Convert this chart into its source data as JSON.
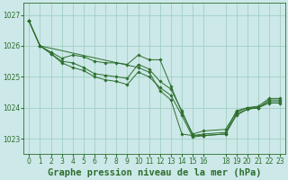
{
  "background_color": "#cce8e8",
  "grid_color": "#99ccbb",
  "line_color": "#2d6e2d",
  "marker_color": "#2d6e2d",
  "title": "Graphe pression niveau de la mer (hPa)",
  "xlim": [
    -0.5,
    23.5
  ],
  "ylim": [
    1022.5,
    1027.4
  ],
  "yticks": [
    1023,
    1024,
    1025,
    1026,
    1027
  ],
  "xticks": [
    0,
    1,
    2,
    3,
    4,
    5,
    6,
    7,
    8,
    9,
    10,
    11,
    12,
    13,
    14,
    15,
    16,
    18,
    19,
    20,
    21,
    22,
    23
  ],
  "series": [
    {
      "x": [
        0,
        1,
        2,
        3,
        4,
        5,
        6,
        7,
        8,
        9,
        10,
        11,
        12,
        13,
        14,
        15,
        16,
        18,
        19,
        20,
        21,
        22,
        23
      ],
      "y": [
        1026.8,
        1026.0,
        1025.8,
        1025.6,
        1025.7,
        1025.65,
        1025.5,
        1025.45,
        1025.45,
        1025.4,
        1025.7,
        1025.55,
        1025.55,
        1024.7,
        1023.85,
        1023.15,
        1023.25,
        1023.3,
        1023.85,
        1024.0,
        1024.05,
        1024.3,
        1024.3
      ]
    },
    {
      "x": [
        0,
        1,
        2,
        3,
        4,
        5,
        6,
        7,
        8,
        9,
        10,
        11,
        12,
        13,
        14,
        15,
        16,
        18,
        19,
        20,
        21,
        22,
        23
      ],
      "y": [
        1026.8,
        1026.0,
        1025.75,
        1025.5,
        1025.45,
        1025.3,
        1025.1,
        1025.05,
        1025.0,
        1024.95,
        1025.4,
        1025.25,
        1024.85,
        1024.6,
        1023.9,
        1023.1,
        1023.15,
        1023.2,
        1023.9,
        1024.0,
        1024.0,
        1024.25,
        1024.25
      ]
    },
    {
      "x": [
        0,
        1,
        2,
        3,
        4,
        5,
        6,
        7,
        8,
        9,
        10,
        11,
        12,
        13,
        14,
        15,
        16,
        18,
        19,
        20,
        21,
        22,
        23
      ],
      "y": [
        1026.8,
        1026.0,
        1025.75,
        1025.45,
        1025.3,
        1025.2,
        1025.0,
        1024.9,
        1024.85,
        1024.75,
        1025.15,
        1025.0,
        1024.65,
        1024.4,
        1023.75,
        1023.05,
        1023.1,
        1023.15,
        1023.8,
        1023.95,
        1024.0,
        1024.2,
        1024.2
      ]
    },
    {
      "x": [
        0,
        1,
        10,
        11,
        12,
        13,
        14,
        15,
        16,
        18,
        19,
        20,
        21,
        22,
        23
      ],
      "y": [
        1026.8,
        1026.0,
        1025.3,
        1025.15,
        1024.55,
        1024.25,
        1023.15,
        1023.1,
        1023.1,
        1023.15,
        1023.75,
        1023.95,
        1024.0,
        1024.15,
        1024.15
      ]
    }
  ],
  "title_fontsize": 7.5,
  "tick_fontsize": 5.5
}
